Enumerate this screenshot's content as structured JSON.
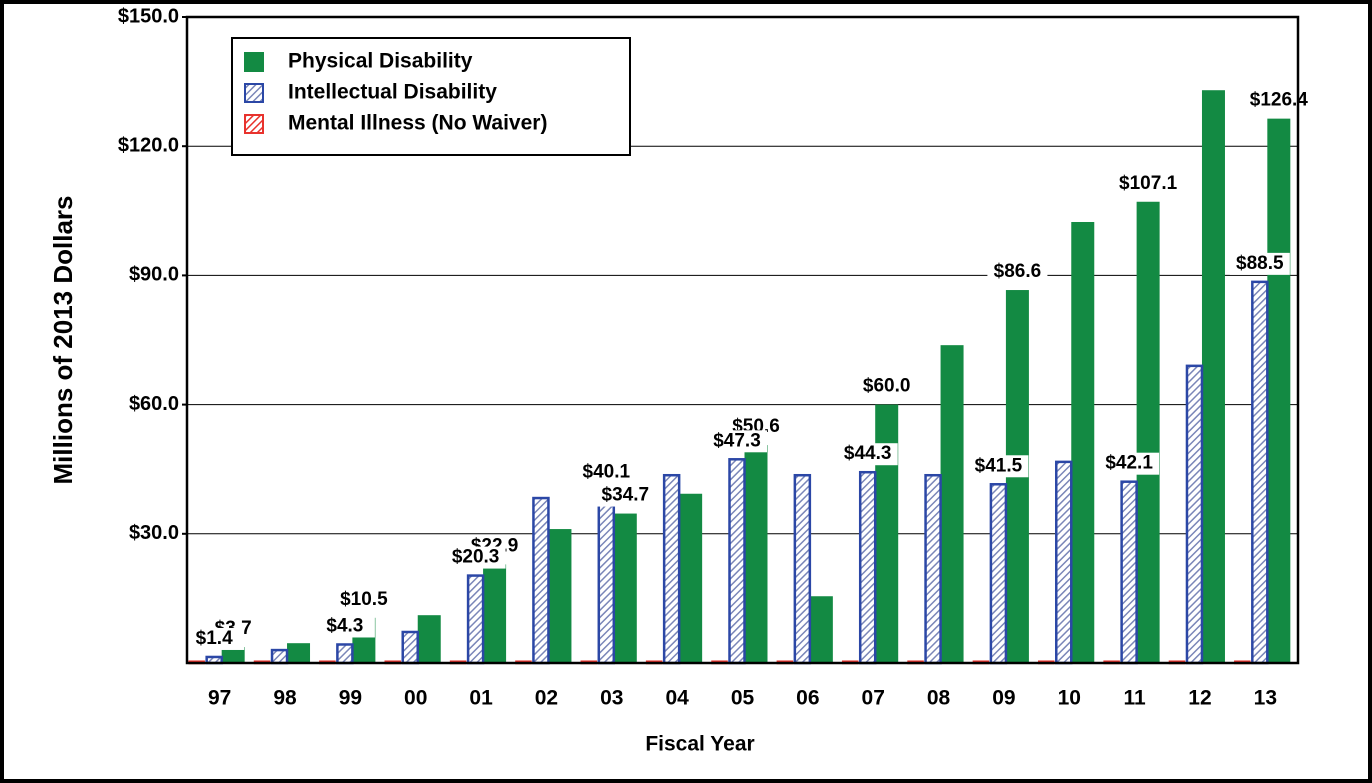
{
  "chart_data": {
    "type": "bar",
    "xlabel": "Fiscal Year",
    "ylabel": "Millions of 2013 Dollars",
    "categories": [
      "97",
      "98",
      "99",
      "00",
      "01",
      "02",
      "03",
      "04",
      "05",
      "06",
      "07",
      "08",
      "09",
      "10",
      "11",
      "12",
      "13"
    ],
    "series": [
      {
        "name": "Physical Disability",
        "color": "#138a43",
        "pattern": "solid",
        "values": [
          3.7,
          4.6,
          10.5,
          11.1,
          22.9,
          31.1,
          34.7,
          39.3,
          50.6,
          15.5,
          60.0,
          73.8,
          86.6,
          102.4,
          107.1,
          133.0,
          126.4
        ],
        "value_labels": [
          "$3.7",
          null,
          "$10.5",
          null,
          "$22.9",
          null,
          "$34.7",
          null,
          "$50.6",
          null,
          "$60.0",
          null,
          "$86.6",
          null,
          "$107.1",
          null,
          "$126.4"
        ]
      },
      {
        "name": "Intellectual Disability",
        "color": "#2b47a6",
        "pattern": "hatch",
        "values": [
          1.4,
          3.0,
          4.3,
          7.2,
          20.3,
          38.3,
          40.1,
          43.6,
          47.3,
          43.6,
          44.3,
          43.6,
          41.5,
          46.7,
          42.1,
          69.0,
          88.5
        ],
        "value_labels": [
          "$1.4",
          null,
          "$4.3",
          null,
          "$20.3",
          null,
          "$40.1",
          null,
          "$47.3",
          null,
          "$44.3",
          null,
          "$41.5",
          null,
          "$42.1",
          null,
          "$88.5"
        ]
      },
      {
        "name": "Mental Illness (No Waiver)",
        "color": "#e8322d",
        "pattern": "hatch",
        "values": [
          0.3,
          0.3,
          0.3,
          0.3,
          0.3,
          0.3,
          0.3,
          0.3,
          0.3,
          0.3,
          0.3,
          0.3,
          0.3,
          0.3,
          0.3,
          0.3,
          0.3
        ]
      }
    ],
    "ylim": [
      0,
      150
    ],
    "yticks": [
      {
        "value": 30,
        "label": "$30.0"
      },
      {
        "value": 60,
        "label": "$60.0"
      },
      {
        "value": 90,
        "label": "$90.0"
      },
      {
        "value": 120,
        "label": "$120.0"
      },
      {
        "value": 150,
        "label": "$150.0"
      }
    ],
    "grid": true,
    "legend": "upper left"
  }
}
